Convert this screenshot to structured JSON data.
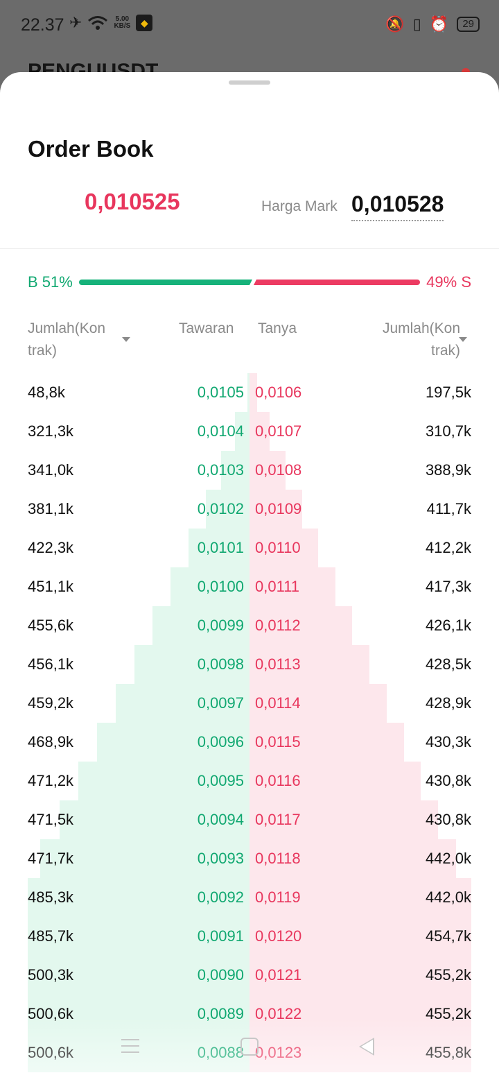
{
  "status_bar": {
    "time": "22.37",
    "speed_value": "5.00",
    "speed_unit": "KB/S",
    "battery": "29"
  },
  "background": {
    "pair_title": "PENGUUSDT"
  },
  "sheet": {
    "title": "Order Book",
    "last_price": "0,010525",
    "mark_label": "Harga Mark",
    "mark_value": "0,010528"
  },
  "ratio": {
    "buy_label": "B 51%",
    "sell_label": "49% S",
    "buy_percent": 51,
    "sell_percent": 49
  },
  "columns": {
    "qty_buy": "Jumlah(Kon trak)",
    "bid": "Tawaran",
    "ask": "Tanya",
    "qty_sell": "Jumlah(Kon trak)"
  },
  "colors": {
    "buy": "#11a871",
    "sell": "#e8365d",
    "buy_depth": "#e3f8ee",
    "sell_depth": "#fde7ec"
  },
  "rows": [
    {
      "buy_qty": "48,8k",
      "bid": "0,0105",
      "ask": "0,0106",
      "sell_qty": "197,5k"
    },
    {
      "buy_qty": "321,3k",
      "bid": "0,0104",
      "ask": "0,0107",
      "sell_qty": "310,7k"
    },
    {
      "buy_qty": "341,0k",
      "bid": "0,0103",
      "ask": "0,0108",
      "sell_qty": "388,9k"
    },
    {
      "buy_qty": "381,1k",
      "bid": "0,0102",
      "ask": "0,0109",
      "sell_qty": "411,7k"
    },
    {
      "buy_qty": "422,3k",
      "bid": "0,0101",
      "ask": "0,0110",
      "sell_qty": "412,2k"
    },
    {
      "buy_qty": "451,1k",
      "bid": "0,0100",
      "ask": "0,0111",
      "sell_qty": "417,3k"
    },
    {
      "buy_qty": "455,6k",
      "bid": "0,0099",
      "ask": "0,0112",
      "sell_qty": "426,1k"
    },
    {
      "buy_qty": "456,1k",
      "bid": "0,0098",
      "ask": "0,0113",
      "sell_qty": "428,5k"
    },
    {
      "buy_qty": "459,2k",
      "bid": "0,0097",
      "ask": "0,0114",
      "sell_qty": "428,9k"
    },
    {
      "buy_qty": "468,9k",
      "bid": "0,0096",
      "ask": "0,0115",
      "sell_qty": "430,3k"
    },
    {
      "buy_qty": "471,2k",
      "bid": "0,0095",
      "ask": "0,0116",
      "sell_qty": "430,8k"
    },
    {
      "buy_qty": "471,5k",
      "bid": "0,0094",
      "ask": "0,0117",
      "sell_qty": "430,8k"
    },
    {
      "buy_qty": "471,7k",
      "bid": "0,0093",
      "ask": "0,0118",
      "sell_qty": "442,0k"
    },
    {
      "buy_qty": "485,3k",
      "bid": "0,0092",
      "ask": "0,0119",
      "sell_qty": "442,0k"
    },
    {
      "buy_qty": "485,7k",
      "bid": "0,0091",
      "ask": "0,0120",
      "sell_qty": "454,7k"
    },
    {
      "buy_qty": "500,3k",
      "bid": "0,0090",
      "ask": "0,0121",
      "sell_qty": "455,2k"
    },
    {
      "buy_qty": "500,6k",
      "bid": "0,0089",
      "ask": "0,0122",
      "sell_qty": "455,2k"
    },
    {
      "buy_qty": "500,6k",
      "bid": "0,0088",
      "ask": "0,0123",
      "sell_qty": "455,8k"
    }
  ]
}
